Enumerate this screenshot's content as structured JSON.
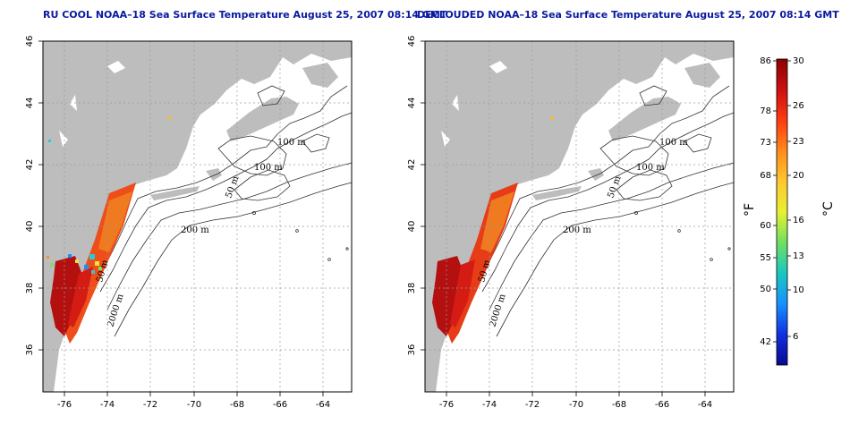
{
  "colors": {
    "title": "#0a1aa0",
    "land": "#bdbdbd",
    "ocean": "#ffffff",
    "grid": "#9a9a9a",
    "contour": "#333333"
  },
  "panels": [
    {
      "title": "RU COOL NOAA–18 Sea Surface Temperature August 25, 2007 08:14 GMT",
      "x_ticks": [
        "-76",
        "-74",
        "-72",
        "-70",
        "-68",
        "-66",
        "-64"
      ],
      "y_ticks": [
        "36",
        "38",
        "40",
        "42",
        "44",
        "46"
      ],
      "contour_labels": [
        "100 m",
        "100 m",
        "50 m",
        "200 m",
        "50 m",
        "2000 m"
      ],
      "clouds_shown": true
    },
    {
      "title": "DECLOUDED NOAA–18 Sea Surface Temperature August 25, 2007 08:14 GMT",
      "x_ticks": [
        "-76",
        "-74",
        "-72",
        "-70",
        "-68",
        "-66",
        "-64"
      ],
      "y_ticks": [
        "36",
        "38",
        "40",
        "42",
        "44",
        "46"
      ],
      "contour_labels": [
        "100 m",
        "100 m",
        "50 m",
        "200 m",
        "50 m",
        "2000 m"
      ],
      "clouds_shown": false
    }
  ],
  "colorbar": {
    "f_ticks": [
      "86",
      "78",
      "73",
      "68",
      "60",
      "55",
      "50",
      "42"
    ],
    "c_ticks": [
      "30",
      "26",
      "23",
      "20",
      "16",
      "13",
      "10",
      "6"
    ],
    "f_label": "°F",
    "c_label": "°C",
    "stops": [
      "#8b0000",
      "#cc1010",
      "#ff3a10",
      "#ff8c1a",
      "#ffc830",
      "#e8f030",
      "#70e060",
      "#18c8c0",
      "#1890ff",
      "#1030e0",
      "#0a0a90"
    ]
  }
}
